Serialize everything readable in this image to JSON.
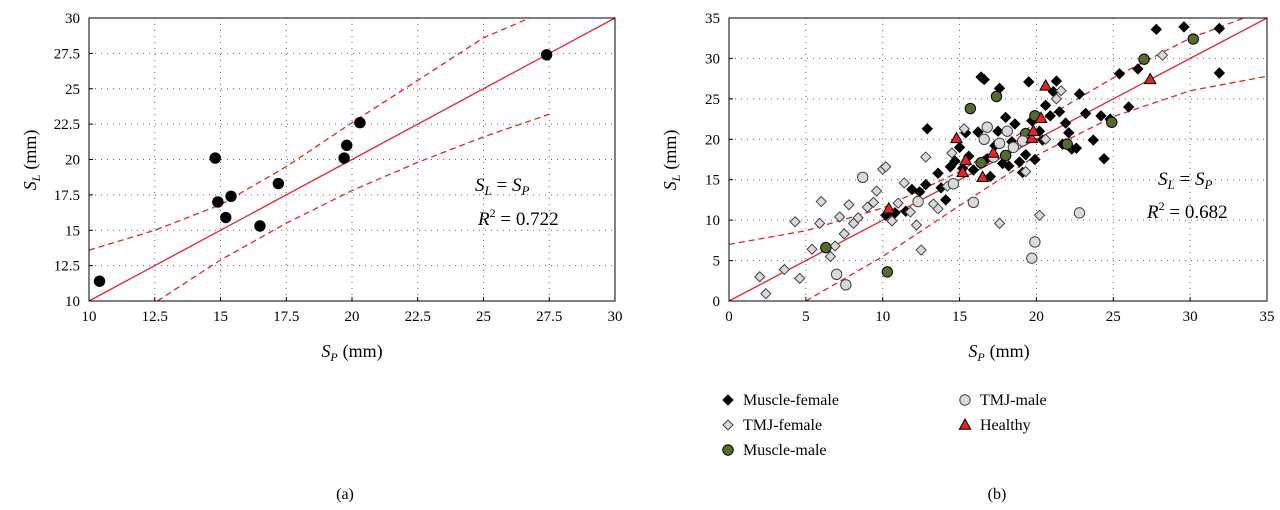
{
  "chart_data": [
    {
      "type": "scatter",
      "caption": "(a)",
      "xlabel": {
        "var": "S",
        "sub": "P",
        "unit": "(mm)"
      },
      "ylabel": {
        "var": "S",
        "sub": "L",
        "unit": "(mm)"
      },
      "xlim": [
        10,
        30
      ],
      "ylim": [
        10,
        30
      ],
      "xticks": [
        10,
        12.5,
        15,
        17.5,
        20,
        22.5,
        25,
        27.5,
        30
      ],
      "yticks": [
        10,
        12.5,
        15,
        17.5,
        20,
        22.5,
        25,
        27.5,
        30
      ],
      "xtick_labels": [
        "10",
        "12.5",
        "15",
        "17.5",
        "20",
        "22.5",
        "25",
        "27.5",
        "30"
      ],
      "ytick_labels": [
        "10",
        "12.5",
        "15",
        "17.5",
        "20",
        "22.5",
        "25",
        "27.5",
        "30"
      ],
      "grid": true,
      "fit_line": {
        "slope": 1,
        "intercept": 0,
        "color": "#e3242b"
      },
      "confidence_band": {
        "upper": [
          [
            10,
            13.6
          ],
          [
            12.5,
            15.0
          ],
          [
            15,
            16.8
          ],
          [
            17.5,
            19.5
          ],
          [
            20,
            22.6
          ],
          [
            22.5,
            25.6
          ],
          [
            25,
            28.6
          ],
          [
            27,
            30.2
          ]
        ],
        "lower": [
          [
            12.6,
            10.0
          ],
          [
            15,
            12.9
          ],
          [
            17.5,
            15.5
          ],
          [
            20,
            17.8
          ],
          [
            22.5,
            19.8
          ],
          [
            25,
            21.6
          ],
          [
            27.5,
            23.2
          ]
        ],
        "color": "#e3242b"
      },
      "annotation": {
        "eq_left": "S",
        "eq_left_sub": "L",
        "eq_mid": " = ",
        "eq_right": "S",
        "eq_right_sub": "P",
        "r2_label": "R",
        "r2_value": " = 0.722"
      },
      "series": [
        {
          "marker": "circle",
          "color": "#000000",
          "points": [
            [
              10.4,
              11.4
            ],
            [
              14.8,
              20.1
            ],
            [
              14.9,
              17.0
            ],
            [
              15.2,
              15.9
            ],
            [
              15.4,
              17.4
            ],
            [
              16.5,
              15.3
            ],
            [
              17.2,
              18.3
            ],
            [
              19.7,
              20.1
            ],
            [
              19.8,
              21.0
            ],
            [
              20.3,
              22.6
            ],
            [
              27.4,
              27.4
            ]
          ]
        }
      ]
    },
    {
      "type": "scatter",
      "caption": "(b)",
      "xlabel": {
        "var": "S",
        "sub": "P",
        "unit": "(mm)"
      },
      "ylabel": {
        "var": "S",
        "sub": "L",
        "unit": "(mm)"
      },
      "xlim": [
        0,
        35
      ],
      "ylim": [
        0,
        35
      ],
      "xticks": [
        0,
        5,
        10,
        15,
        20,
        25,
        30,
        35
      ],
      "yticks": [
        0,
        5,
        10,
        15,
        20,
        25,
        30,
        35
      ],
      "xtick_labels": [
        "0",
        "5",
        "10",
        "15",
        "20",
        "25",
        "30",
        "35"
      ],
      "ytick_labels": [
        "0",
        "5",
        "10",
        "15",
        "20",
        "25",
        "30",
        "35"
      ],
      "grid": true,
      "fit_line": {
        "slope": 1,
        "intercept": 0,
        "color": "#e3242b"
      },
      "confidence_band": {
        "upper": [
          [
            0,
            7.0
          ],
          [
            5,
            8.7
          ],
          [
            10,
            11.5
          ],
          [
            15,
            16.0
          ],
          [
            20,
            22.0
          ],
          [
            25,
            27.6
          ],
          [
            30,
            32.5
          ],
          [
            33.5,
            35.0
          ]
        ],
        "lower": [
          [
            5.0,
            0.0
          ],
          [
            10,
            5.5
          ],
          [
            15,
            11.8
          ],
          [
            20,
            18.0
          ],
          [
            25,
            22.8
          ],
          [
            30,
            26.0
          ],
          [
            35,
            27.8
          ]
        ],
        "color": "#e3242b"
      },
      "annotation": {
        "eq_left": "S",
        "eq_left_sub": "L",
        "eq_mid": " = ",
        "eq_right": "S",
        "eq_right_sub": "P",
        "r2_label": "R",
        "r2_value": " = 0.682"
      },
      "legend": {
        "placement": "below",
        "items": [
          {
            "label": "Muscle-female",
            "marker": "diamond",
            "fill": "#000000",
            "stroke": "#000000"
          },
          {
            "label": "TMJ-female",
            "marker": "diamond",
            "fill": "#d9d9d9",
            "stroke": "#444444"
          },
          {
            "label": "Muscle-male",
            "marker": "circle",
            "fill": "#556b2f",
            "stroke": "#000000"
          },
          {
            "label": "TMJ-male",
            "marker": "circle",
            "fill": "#d9d9d9",
            "stroke": "#444444"
          },
          {
            "label": "Healthy",
            "marker": "triangle",
            "fill": "#e3242b",
            "stroke": "#000000"
          }
        ]
      },
      "series": [
        {
          "name": "Muscle-female",
          "marker": "diamond",
          "fill": "#000000",
          "stroke": "#000000",
          "points": [
            [
              10.2,
              10.6
            ],
            [
              10.8,
              10.9
            ],
            [
              11.5,
              11.1
            ],
            [
              11.9,
              13.8
            ],
            [
              12.4,
              13.5
            ],
            [
              12.8,
              14.4
            ],
            [
              12.9,
              21.3
            ],
            [
              13.6,
              15.8
            ],
            [
              13.8,
              14.0
            ],
            [
              14.1,
              12.5
            ],
            [
              14.4,
              16.6
            ],
            [
              14.7,
              17.3
            ],
            [
              15.0,
              19.0
            ],
            [
              15.2,
              16.4
            ],
            [
              15.4,
              20.8
            ],
            [
              15.6,
              17.9
            ],
            [
              15.9,
              16.2
            ],
            [
              16.2,
              20.9
            ],
            [
              16.4,
              27.7
            ],
            [
              16.6,
              27.4
            ],
            [
              16.8,
              17.6
            ],
            [
              17.0,
              15.4
            ],
            [
              17.3,
              19.2
            ],
            [
              17.5,
              21.0
            ],
            [
              17.6,
              26.3
            ],
            [
              17.8,
              17.0
            ],
            [
              18.0,
              22.7
            ],
            [
              18.2,
              16.7
            ],
            [
              18.4,
              19.7
            ],
            [
              18.6,
              21.9
            ],
            [
              18.9,
              17.2
            ],
            [
              19.1,
              15.9
            ],
            [
              19.3,
              18.1
            ],
            [
              19.5,
              27.1
            ],
            [
              19.7,
              22.3
            ],
            [
              19.9,
              17.5
            ],
            [
              20.2,
              21.0
            ],
            [
              20.4,
              19.9
            ],
            [
              20.6,
              24.2
            ],
            [
              20.9,
              22.9
            ],
            [
              21.1,
              25.9
            ],
            [
              21.3,
              27.2
            ],
            [
              21.5,
              23.4
            ],
            [
              21.7,
              19.4
            ],
            [
              21.9,
              22.0
            ],
            [
              22.1,
              20.8
            ],
            [
              22.3,
              18.8
            ],
            [
              22.6,
              18.9
            ],
            [
              22.8,
              25.6
            ],
            [
              23.2,
              23.2
            ],
            [
              23.7,
              19.9
            ],
            [
              24.2,
              22.9
            ],
            [
              24.4,
              17.6
            ],
            [
              24.8,
              22.5
            ],
            [
              25.4,
              28.1
            ],
            [
              26.0,
              24.0
            ],
            [
              26.6,
              28.7
            ],
            [
              27.8,
              33.6
            ],
            [
              29.6,
              33.9
            ],
            [
              31.9,
              33.7
            ],
            [
              31.9,
              28.2
            ]
          ]
        },
        {
          "name": "TMJ-female",
          "marker": "diamond",
          "fill": "#d9d9d9",
          "stroke": "#444444",
          "points": [
            [
              2.0,
              3.0
            ],
            [
              2.4,
              0.9
            ],
            [
              3.6,
              3.9
            ],
            [
              4.3,
              9.8
            ],
            [
              4.6,
              2.8
            ],
            [
              5.4,
              6.4
            ],
            [
              5.9,
              9.6
            ],
            [
              6.0,
              12.3
            ],
            [
              6.6,
              5.5
            ],
            [
              6.9,
              6.8
            ],
            [
              7.2,
              10.4
            ],
            [
              7.5,
              8.3
            ],
            [
              7.8,
              11.9
            ],
            [
              8.1,
              9.6
            ],
            [
              8.4,
              10.3
            ],
            [
              9.0,
              11.6
            ],
            [
              9.4,
              12.2
            ],
            [
              9.6,
              13.6
            ],
            [
              10.0,
              16.3
            ],
            [
              10.2,
              16.6
            ],
            [
              10.6,
              9.9
            ],
            [
              11.0,
              12.1
            ],
            [
              11.4,
              14.6
            ],
            [
              11.8,
              11.0
            ],
            [
              12.2,
              9.4
            ],
            [
              12.5,
              6.3
            ],
            [
              12.8,
              17.8
            ],
            [
              13.3,
              12.0
            ],
            [
              13.6,
              11.4
            ],
            [
              14.2,
              14.2
            ],
            [
              14.5,
              18.3
            ],
            [
              15.3,
              21.3
            ],
            [
              16.4,
              17.1
            ],
            [
              17.6,
              9.6
            ],
            [
              18.8,
              19.3
            ],
            [
              19.3,
              16.0
            ],
            [
              20.2,
              10.6
            ],
            [
              20.6,
              20.0
            ],
            [
              21.3,
              25.0
            ],
            [
              21.6,
              26.0
            ],
            [
              28.2,
              30.4
            ]
          ]
        },
        {
          "name": "Muscle-male",
          "marker": "circle",
          "fill": "#556b2f",
          "stroke": "#000000",
          "points": [
            [
              6.3,
              6.6
            ],
            [
              10.3,
              3.6
            ],
            [
              15.7,
              23.8
            ],
            [
              16.4,
              17.1
            ],
            [
              17.4,
              25.3
            ],
            [
              18.0,
              18.0
            ],
            [
              19.3,
              20.7
            ],
            [
              19.9,
              22.9
            ],
            [
              22.0,
              19.4
            ],
            [
              24.9,
              22.1
            ],
            [
              27.0,
              29.9
            ],
            [
              30.2,
              32.4
            ]
          ]
        },
        {
          "name": "TMJ-male",
          "marker": "circle",
          "fill": "#d9d9d9",
          "stroke": "#444444",
          "points": [
            [
              7.0,
              3.3
            ],
            [
              7.6,
              2.0
            ],
            [
              8.7,
              15.3
            ],
            [
              12.3,
              12.3
            ],
            [
              14.6,
              14.5
            ],
            [
              15.9,
              12.2
            ],
            [
              16.6,
              20.0
            ],
            [
              16.8,
              21.5
            ],
            [
              17.2,
              17.8
            ],
            [
              17.6,
              19.5
            ],
            [
              18.1,
              21.0
            ],
            [
              18.5,
              19.0
            ],
            [
              19.1,
              19.8
            ],
            [
              19.7,
              5.3
            ],
            [
              19.9,
              7.3
            ],
            [
              22.8,
              10.9
            ]
          ]
        },
        {
          "name": "Healthy",
          "marker": "triangle",
          "fill": "#e3242b",
          "stroke": "#000000",
          "points": [
            [
              10.4,
              11.4
            ],
            [
              14.8,
              20.1
            ],
            [
              15.2,
              15.9
            ],
            [
              15.4,
              17.4
            ],
            [
              16.5,
              15.3
            ],
            [
              17.2,
              18.3
            ],
            [
              19.7,
              20.1
            ],
            [
              19.8,
              21.0
            ],
            [
              20.3,
              22.6
            ],
            [
              20.6,
              26.6
            ],
            [
              27.4,
              27.4
            ]
          ]
        }
      ]
    }
  ]
}
